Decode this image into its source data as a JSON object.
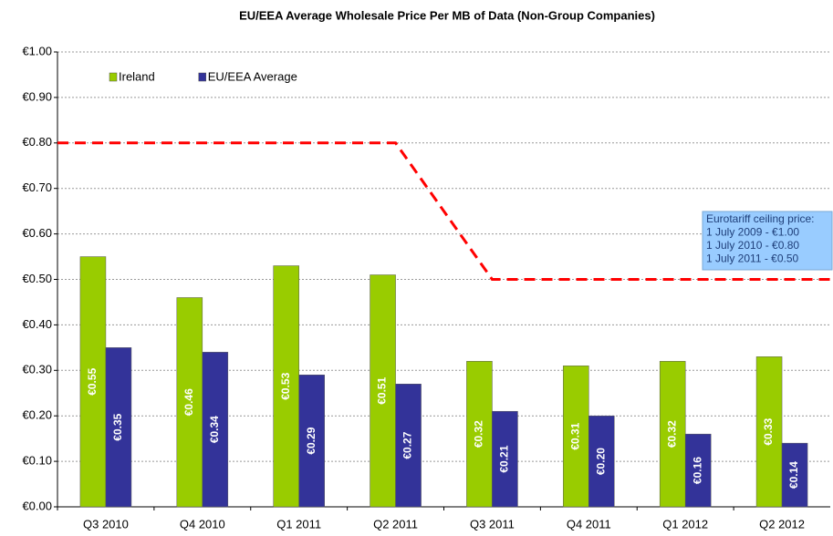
{
  "chart_data": {
    "type": "bar",
    "title": "EU/EEA Average Wholesale Price Per MB of Data (Non-Group Companies)",
    "categories": [
      "Q3 2010",
      "Q4 2010",
      "Q1 2011",
      "Q2 2011",
      "Q3 2011",
      "Q4 2011",
      "Q1 2012",
      "Q2 2012"
    ],
    "series": [
      {
        "name": "Ireland",
        "color": "#99cc00",
        "values": [
          0.55,
          0.46,
          0.53,
          0.51,
          0.32,
          0.31,
          0.32,
          0.33
        ],
        "value_labels": [
          "€0.55",
          "€0.46",
          "€0.53",
          "€0.51",
          "€0.32",
          "€0.31",
          "€0.32",
          "€0.33"
        ]
      },
      {
        "name": "EU/EEA Average",
        "color": "#333399",
        "values": [
          0.35,
          0.34,
          0.29,
          0.27,
          0.21,
          0.2,
          0.16,
          0.14
        ],
        "value_labels": [
          "€0.35",
          "€0.34",
          "€0.29",
          "€0.27",
          "€0.21",
          "€0.20",
          "€0.16",
          "€0.14"
        ]
      }
    ],
    "reference_line": {
      "color": "#ff0000",
      "values": [
        0.8,
        0.8,
        0.8,
        0.8,
        0.5,
        0.5,
        0.5,
        0.5
      ]
    },
    "annotation": [
      "Eurotariff ceiling price:",
      "1 July 2009 - €1.00",
      "1 July 2010 - €0.80",
      "1 July 2011 - €0.50"
    ],
    "ylim": [
      0,
      1
    ],
    "yticks": [
      {
        "value": 0,
        "label": "€0.00"
      },
      {
        "value": 0.1,
        "label": "€0.10"
      },
      {
        "value": 0.2,
        "label": "€0.20"
      },
      {
        "value": 0.3,
        "label": "€0.30"
      },
      {
        "value": 0.4,
        "label": "€0.40"
      },
      {
        "value": 0.5,
        "label": "€0.50"
      },
      {
        "value": 0.6,
        "label": "€0.60"
      },
      {
        "value": 0.7,
        "label": "€0.70"
      },
      {
        "value": 0.8,
        "label": "€0.80"
      },
      {
        "value": 0.9,
        "label": "€0.90"
      },
      {
        "value": 1,
        "label": "€1.00"
      }
    ],
    "grid": true,
    "legend": "top-left"
  }
}
